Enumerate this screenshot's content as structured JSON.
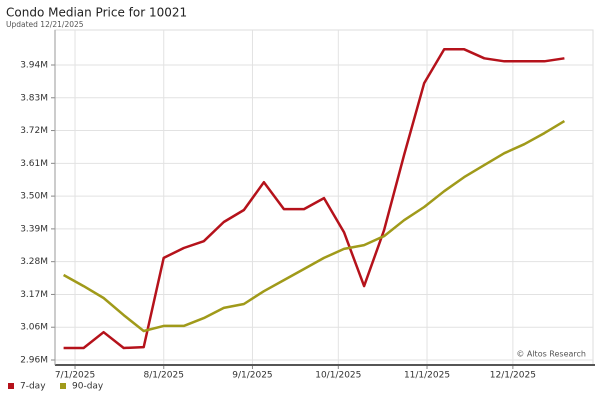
{
  "chart_data": {
    "type": "line",
    "title": "Condo Median Price for 10021",
    "subtitle": "Updated 12/21/2025",
    "annotation": "© Altos Research",
    "x": [
      "2025-06-27",
      "2025-07-04",
      "2025-07-11",
      "2025-07-18",
      "2025-07-25",
      "2025-08-01",
      "2025-08-08",
      "2025-08-15",
      "2025-08-22",
      "2025-08-29",
      "2025-09-05",
      "2025-09-12",
      "2025-09-19",
      "2025-09-26",
      "2025-10-03",
      "2025-10-10",
      "2025-10-17",
      "2025-10-24",
      "2025-10-31",
      "2025-11-07",
      "2025-11-14",
      "2025-11-21",
      "2025-11-28",
      "2025-12-05",
      "2025-12-12",
      "2025-12-19"
    ],
    "series": [
      {
        "name": "7-day",
        "color": "#b5121b",
        "values": [
          2995000,
          2995000,
          3048000,
          2995000,
          2998000,
          3296000,
          3329000,
          3352000,
          3416000,
          3456000,
          3549000,
          3459000,
          3459000,
          3496000,
          3382000,
          3202000,
          3389000,
          3640000,
          3880000,
          3993000,
          3993000,
          3963000,
          3953000,
          3953000,
          3953000,
          3963000
        ]
      },
      {
        "name": "90-day",
        "color": "#a09a1a",
        "values": [
          3239000,
          3202000,
          3162000,
          3105000,
          3052000,
          3069000,
          3069000,
          3095000,
          3129000,
          3142000,
          3185000,
          3222000,
          3259000,
          3296000,
          3326000,
          3339000,
          3369000,
          3422000,
          3466000,
          3519000,
          3566000,
          3606000,
          3646000,
          3676000,
          3713000,
          3753000
        ]
      }
    ],
    "xlim": [
      "2025-06-24",
      "2025-12-29"
    ],
    "xticks": [
      {
        "value": "2025-07-01",
        "label": "7/1/2025"
      },
      {
        "value": "2025-08-01",
        "label": "8/1/2025"
      },
      {
        "value": "2025-09-01",
        "label": "9/1/2025"
      },
      {
        "value": "2025-10-01",
        "label": "10/1/2025"
      },
      {
        "value": "2025-11-01",
        "label": "11/1/2025"
      },
      {
        "value": "2025-12-01",
        "label": "12/1/2025"
      }
    ],
    "ylim": [
      2938300,
      4057400
    ],
    "yticks": [
      {
        "value": 2955000,
        "label": "2.96M"
      },
      {
        "value": 3064500,
        "label": "3.06M"
      },
      {
        "value": 3174000,
        "label": "3.17M"
      },
      {
        "value": 3283500,
        "label": "3.28M"
      },
      {
        "value": 3393000,
        "label": "3.39M"
      },
      {
        "value": 3502500,
        "label": "3.50M"
      },
      {
        "value": 3612000,
        "label": "3.61M"
      },
      {
        "value": 3721500,
        "label": "3.72M"
      },
      {
        "value": 3831000,
        "label": "3.83M"
      },
      {
        "value": 3940500,
        "label": "3.94M"
      }
    ],
    "grid": true,
    "legend": "bottom-left"
  }
}
